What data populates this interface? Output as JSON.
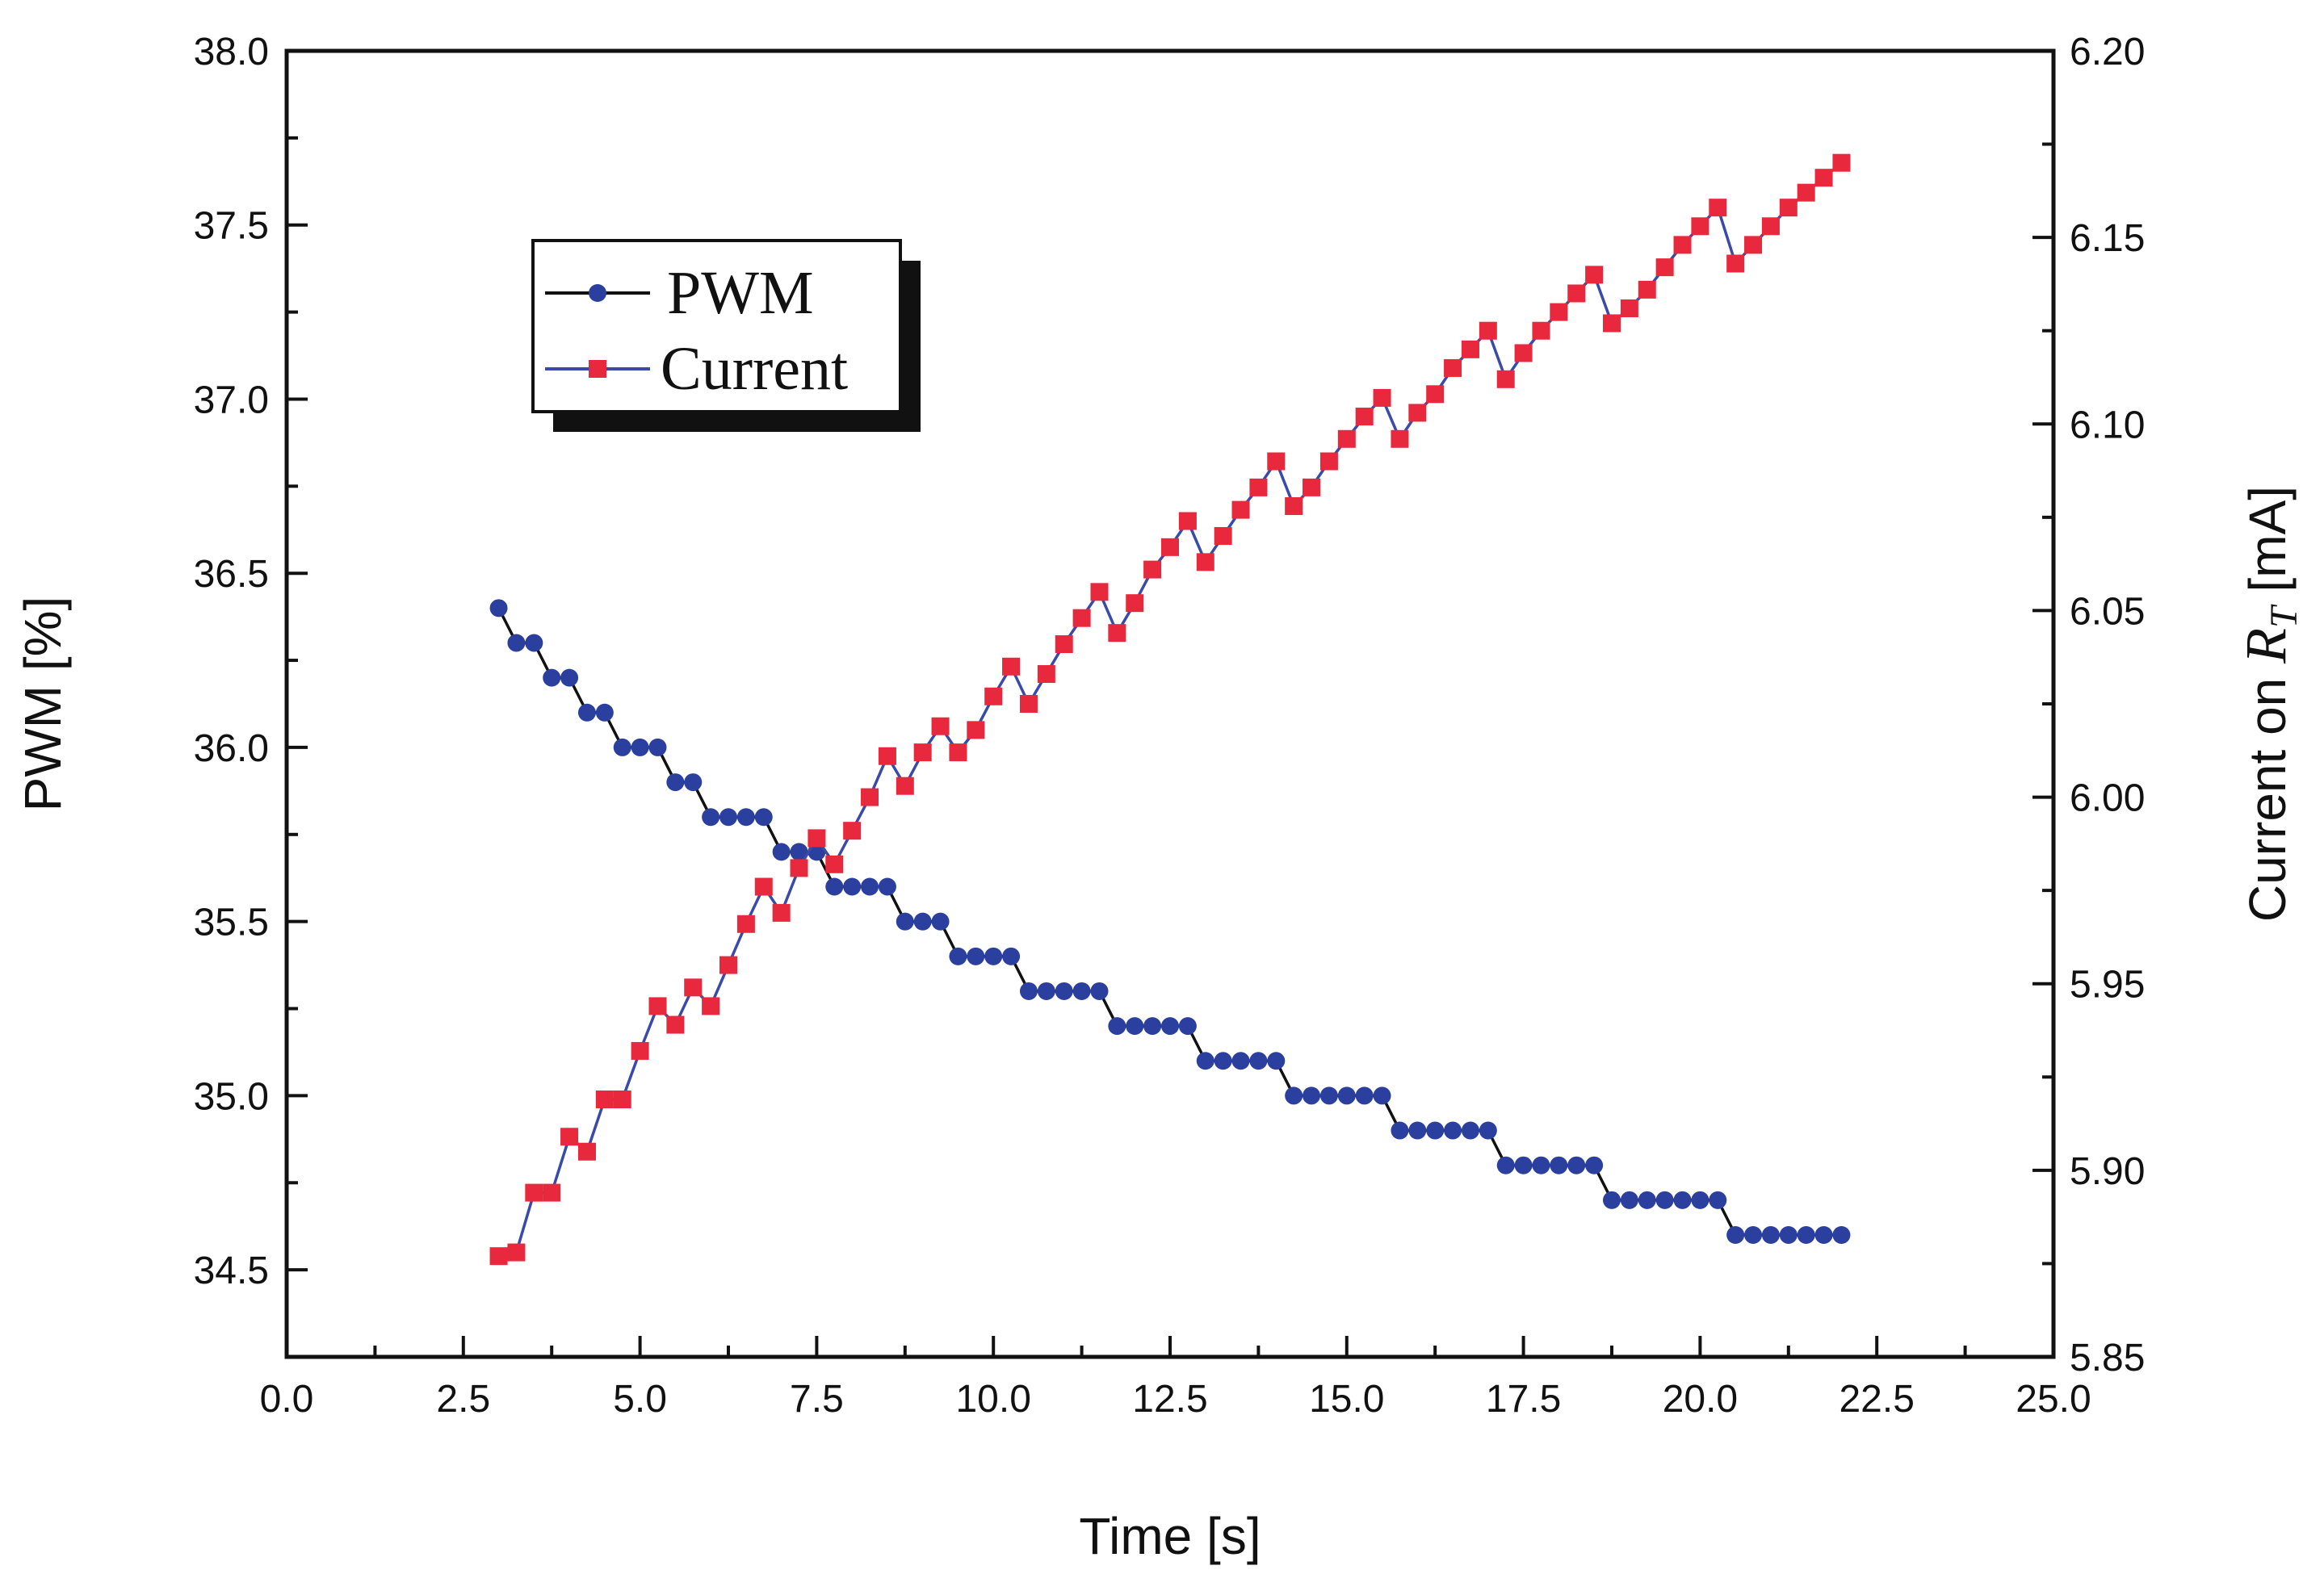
{
  "chart_data": {
    "type": "line",
    "title": "",
    "xlabel": "Time [s]",
    "ylabel_left": "PWM [%]",
    "ylabel_right_prefix": "Current on ",
    "ylabel_right_symbol": "R",
    "ylabel_right_subscript": "T",
    "ylabel_right_suffix": " [mA]",
    "xlim": [
      0,
      25
    ],
    "ylim_left": [
      34.25,
      38.0
    ],
    "ylim_right": [
      5.85,
      6.2
    ],
    "x_ticks": [
      "0.0",
      "2.5",
      "5.0",
      "7.5",
      "10.0",
      "12.5",
      "15.0",
      "17.5",
      "20.0",
      "22.5",
      "25.0"
    ],
    "y_left_ticks": [
      "34.5",
      "35.0",
      "35.5",
      "36.0",
      "36.5",
      "37.0",
      "37.5",
      "38.0"
    ],
    "y_right_ticks": [
      "5.85",
      "5.90",
      "5.95",
      "6.00",
      "6.05",
      "6.10",
      "6.15",
      "6.20"
    ],
    "legend": {
      "position": "top-left",
      "entries": [
        "PWM",
        "Current"
      ]
    },
    "colors": {
      "pwm": "#2b3f9e",
      "current": "#e8283c",
      "current_line": "#3a4aa8",
      "pwm_line": "#111111",
      "axis": "#111111"
    },
    "x": [
      3.0,
      3.25,
      3.5,
      3.75,
      4.0,
      4.25,
      4.5,
      4.75,
      5.0,
      5.25,
      5.5,
      5.75,
      6.0,
      6.25,
      6.5,
      6.75,
      7.0,
      7.25,
      7.5,
      7.75,
      8.0,
      8.25,
      8.5,
      8.75,
      9.0,
      9.25,
      9.5,
      9.75,
      10.0,
      10.25,
      10.5,
      10.75,
      11.0,
      11.25,
      11.5,
      11.75,
      12.0,
      12.25,
      12.5,
      12.75,
      13.0,
      13.25,
      13.5,
      13.75,
      14.0,
      14.25,
      14.5,
      14.75,
      15.0,
      15.25,
      15.5,
      15.75,
      16.0,
      16.25,
      16.5,
      16.75,
      17.0,
      17.25,
      17.5,
      17.75,
      18.0,
      18.25,
      18.5,
      18.75,
      19.0,
      19.25,
      19.5,
      19.75,
      20.0,
      20.25,
      20.5,
      20.75,
      21.0,
      21.25,
      21.5,
      21.75,
      22.0
    ],
    "series": [
      {
        "name": "PWM",
        "axis": "left",
        "marker": "circle",
        "values": [
          36.4,
          36.3,
          36.3,
          36.2,
          36.2,
          36.1,
          36.1,
          36.0,
          36.0,
          36.0,
          35.9,
          35.9,
          35.8,
          35.8,
          35.8,
          35.8,
          35.7,
          35.7,
          35.7,
          35.6,
          35.6,
          35.6,
          35.6,
          35.5,
          35.5,
          35.5,
          35.4,
          35.4,
          35.4,
          35.4,
          35.3,
          35.3,
          35.3,
          35.3,
          35.3,
          35.2,
          35.2,
          35.2,
          35.2,
          35.2,
          35.1,
          35.1,
          35.1,
          35.1,
          35.1,
          35.0,
          35.0,
          35.0,
          35.0,
          35.0,
          35.0,
          34.9,
          34.9,
          34.9,
          34.9,
          34.9,
          34.9,
          34.8,
          34.8,
          34.8,
          34.8,
          34.8,
          34.8,
          34.7,
          34.7,
          34.7,
          34.7,
          34.7,
          34.7,
          34.7,
          34.6,
          34.6,
          34.6,
          34.6,
          34.6,
          34.6,
          34.6
        ]
      },
      {
        "name": "Current",
        "axis": "right",
        "marker": "square",
        "values": [
          5.877,
          5.878,
          5.894,
          5.894,
          5.909,
          5.905,
          5.919,
          5.919,
          5.932,
          5.944,
          5.939,
          5.949,
          5.944,
          5.955,
          5.966,
          5.976,
          5.969,
          5.981,
          5.989,
          5.982,
          5.991,
          6.0,
          6.011,
          6.003,
          6.012,
          6.019,
          6.012,
          6.018,
          6.027,
          6.035,
          6.025,
          6.033,
          6.041,
          6.048,
          6.055,
          6.044,
          6.052,
          6.061,
          6.067,
          6.074,
          6.063,
          6.07,
          6.077,
          6.083,
          6.09,
          6.078,
          6.083,
          6.09,
          6.096,
          6.102,
          6.107,
          6.096,
          6.103,
          6.108,
          6.115,
          6.12,
          6.125,
          6.112,
          6.119,
          6.125,
          6.13,
          6.135,
          6.14,
          6.127,
          6.131,
          6.136,
          6.142,
          6.148,
          6.153,
          6.158,
          6.143,
          6.148,
          6.153,
          6.158,
          6.162,
          6.166,
          6.17
        ]
      }
    ]
  }
}
